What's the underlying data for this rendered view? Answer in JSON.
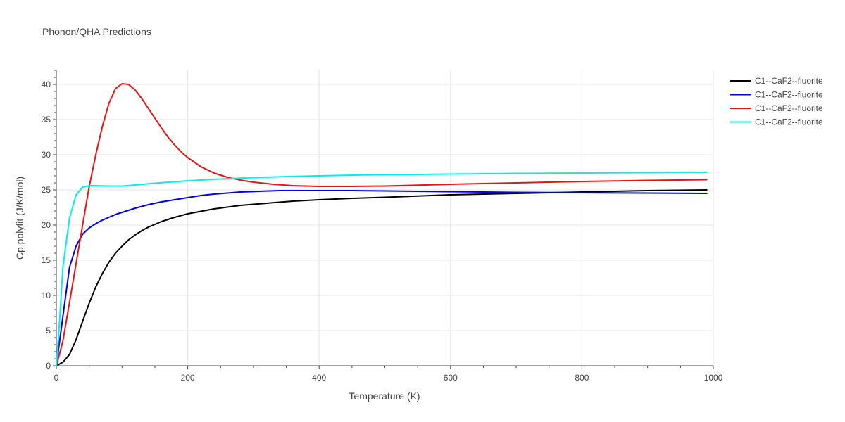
{
  "chart_data": {
    "type": "line",
    "title": "Phonon/QHA Predictions",
    "xlabel": "Temperature (K)",
    "ylabel": "Cp polyfit (J/K/mol)",
    "xlim": [
      0,
      1000
    ],
    "ylim": [
      0,
      42
    ],
    "xticks": [
      0,
      200,
      400,
      600,
      800,
      1000
    ],
    "yticks": [
      0,
      5,
      10,
      15,
      20,
      25,
      30,
      35,
      40
    ],
    "grid": true,
    "legend_position": "top-right",
    "series": [
      {
        "name": "C1--CaF2--fluorite",
        "color": "#000000",
        "x": [
          0,
          10,
          20,
          30,
          40,
          50,
          60,
          70,
          80,
          90,
          100,
          110,
          120,
          130,
          140,
          160,
          180,
          200,
          240,
          280,
          320,
          360,
          400,
          450,
          500,
          600,
          700,
          800,
          900,
          990
        ],
        "y": [
          0,
          0.5,
          1.6,
          3.7,
          6.3,
          8.9,
          11.2,
          13.1,
          14.7,
          16.0,
          17.0,
          17.9,
          18.6,
          19.2,
          19.7,
          20.5,
          21.1,
          21.6,
          22.3,
          22.8,
          23.1,
          23.4,
          23.6,
          23.8,
          23.95,
          24.3,
          24.5,
          24.7,
          24.9,
          25.0
        ]
      },
      {
        "name": "C1--CaF2--fluorite",
        "color": "#0000ee",
        "x": [
          0,
          10,
          20,
          30,
          40,
          50,
          60,
          70,
          80,
          90,
          100,
          120,
          140,
          160,
          180,
          200,
          220,
          240,
          280,
          340,
          400,
          450,
          500,
          600,
          700,
          800,
          900,
          990
        ],
        "y": [
          0,
          7.0,
          14.0,
          17.0,
          18.7,
          19.6,
          20.2,
          20.7,
          21.1,
          21.5,
          21.8,
          22.4,
          22.9,
          23.3,
          23.6,
          23.9,
          24.2,
          24.4,
          24.7,
          24.9,
          24.9,
          24.9,
          24.85,
          24.75,
          24.65,
          24.6,
          24.55,
          24.5
        ]
      },
      {
        "name": "C1--CaF2--fluorite",
        "color": "#ee1111",
        "x": [
          0,
          10,
          20,
          30,
          40,
          50,
          60,
          70,
          80,
          90,
          100,
          110,
          120,
          130,
          140,
          150,
          160,
          170,
          180,
          190,
          200,
          220,
          240,
          260,
          280,
          300,
          330,
          360,
          400,
          450,
          500,
          600,
          700,
          800,
          900,
          990
        ],
        "y": [
          0,
          3.5,
          9.0,
          14.5,
          20.0,
          25.5,
          30.0,
          34.0,
          37.3,
          39.4,
          40.1,
          40.0,
          39.2,
          38.0,
          36.6,
          35.2,
          33.8,
          32.5,
          31.4,
          30.4,
          29.6,
          28.3,
          27.4,
          26.8,
          26.4,
          26.1,
          25.8,
          25.6,
          25.5,
          25.5,
          25.55,
          25.8,
          26.0,
          26.2,
          26.35,
          26.45
        ]
      },
      {
        "name": "C1--CaF2--fluorite",
        "color": "#00eeee",
        "x": [
          0,
          5,
          10,
          20,
          30,
          40,
          50,
          60,
          80,
          100,
          120,
          150,
          200,
          250,
          300,
          350,
          400,
          450,
          500,
          600,
          700,
          800,
          900,
          990
        ],
        "y": [
          0,
          6.5,
          14.0,
          21.0,
          24.3,
          25.4,
          25.6,
          25.6,
          25.55,
          25.55,
          25.7,
          25.95,
          26.3,
          26.55,
          26.75,
          26.9,
          27.0,
          27.1,
          27.15,
          27.25,
          27.35,
          27.4,
          27.45,
          27.5
        ]
      }
    ]
  }
}
